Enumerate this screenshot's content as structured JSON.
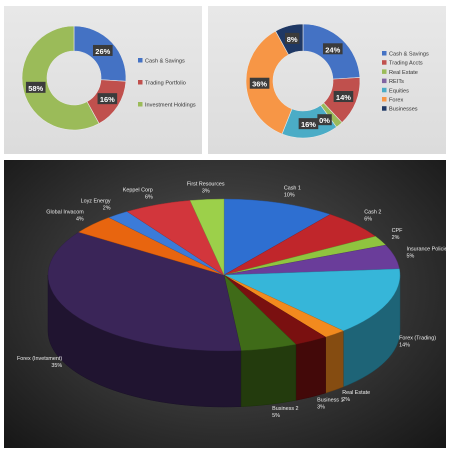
{
  "chart_data": [
    {
      "type": "donut",
      "title": "",
      "legend_position": "right",
      "slices": [
        {
          "label": "Cash & Savings",
          "value": 26,
          "label_text": "26%",
          "color": "#4472c4"
        },
        {
          "label": "Trading Portfolio",
          "value": 16,
          "label_text": "16%",
          "color": "#c0504d"
        },
        {
          "label": "Investment Holdings",
          "value": 58,
          "label_text": "58%",
          "color": "#9bbb59"
        }
      ]
    },
    {
      "type": "donut",
      "title": "",
      "legend_position": "right",
      "slices": [
        {
          "label": "Cash & Savings",
          "value": 24,
          "label_text": "24%",
          "color": "#4472c4"
        },
        {
          "label": "Trading Accts",
          "value": 14,
          "label_text": "14%",
          "color": "#c0504d"
        },
        {
          "label": "Real Estate",
          "value": 2,
          "label_text": "",
          "color": "#9bbb59"
        },
        {
          "label": "REITs",
          "value": 0,
          "label_text": "0%",
          "color": "#8064a2"
        },
        {
          "label": "Equities",
          "value": 16,
          "label_text": "16%",
          "color": "#4bacc6"
        },
        {
          "label": "Forex",
          "value": 36,
          "label_text": "36%",
          "color": "#f79646"
        },
        {
          "label": "Businesses",
          "value": 8,
          "label_text": "8%",
          "color": "#1f3864"
        }
      ]
    },
    {
      "type": "pie",
      "title": "",
      "style": "3d",
      "slices": [
        {
          "label": "Cash 1",
          "value": 10,
          "pct_text": "10%",
          "color": "#2e6fd1"
        },
        {
          "label": "Cash 2",
          "value": 6,
          "pct_text": "6%",
          "color": "#c0262b"
        },
        {
          "label": "CPF",
          "value": 2,
          "pct_text": "2%",
          "color": "#8fc43f"
        },
        {
          "label": "Insurance Policies",
          "value": 5,
          "pct_text": "5%",
          "color": "#6a3d9a"
        },
        {
          "label": "Forex (Trading)",
          "value": 14,
          "pct_text": "14%",
          "color": "#36b6d9"
        },
        {
          "label": "Real Estate",
          "value": 2,
          "pct_text": "2%",
          "color": "#f28a1e"
        },
        {
          "label": "Business 1",
          "value": 3,
          "pct_text": "3%",
          "color": "#7a1010"
        },
        {
          "label": "Business 2",
          "value": 5,
          "pct_text": "5%",
          "color": "#3f6b18"
        },
        {
          "label": "Forex (Invetsment)",
          "value": 35,
          "pct_text": "35%",
          "color": "#3a2558"
        },
        {
          "label": "Global Invacom",
          "value": 4,
          "pct_text": "4%",
          "color": "#e8650f"
        },
        {
          "label": "Loyz Energy",
          "value": 2,
          "pct_text": "2%",
          "color": "#3b7bd9"
        },
        {
          "label": "Keppel Corp",
          "value": 6,
          "pct_text": "6%",
          "color": "#d2363c"
        },
        {
          "label": "First Resources",
          "value": 3,
          "pct_text": "3%",
          "color": "#9cd04a"
        }
      ]
    }
  ]
}
